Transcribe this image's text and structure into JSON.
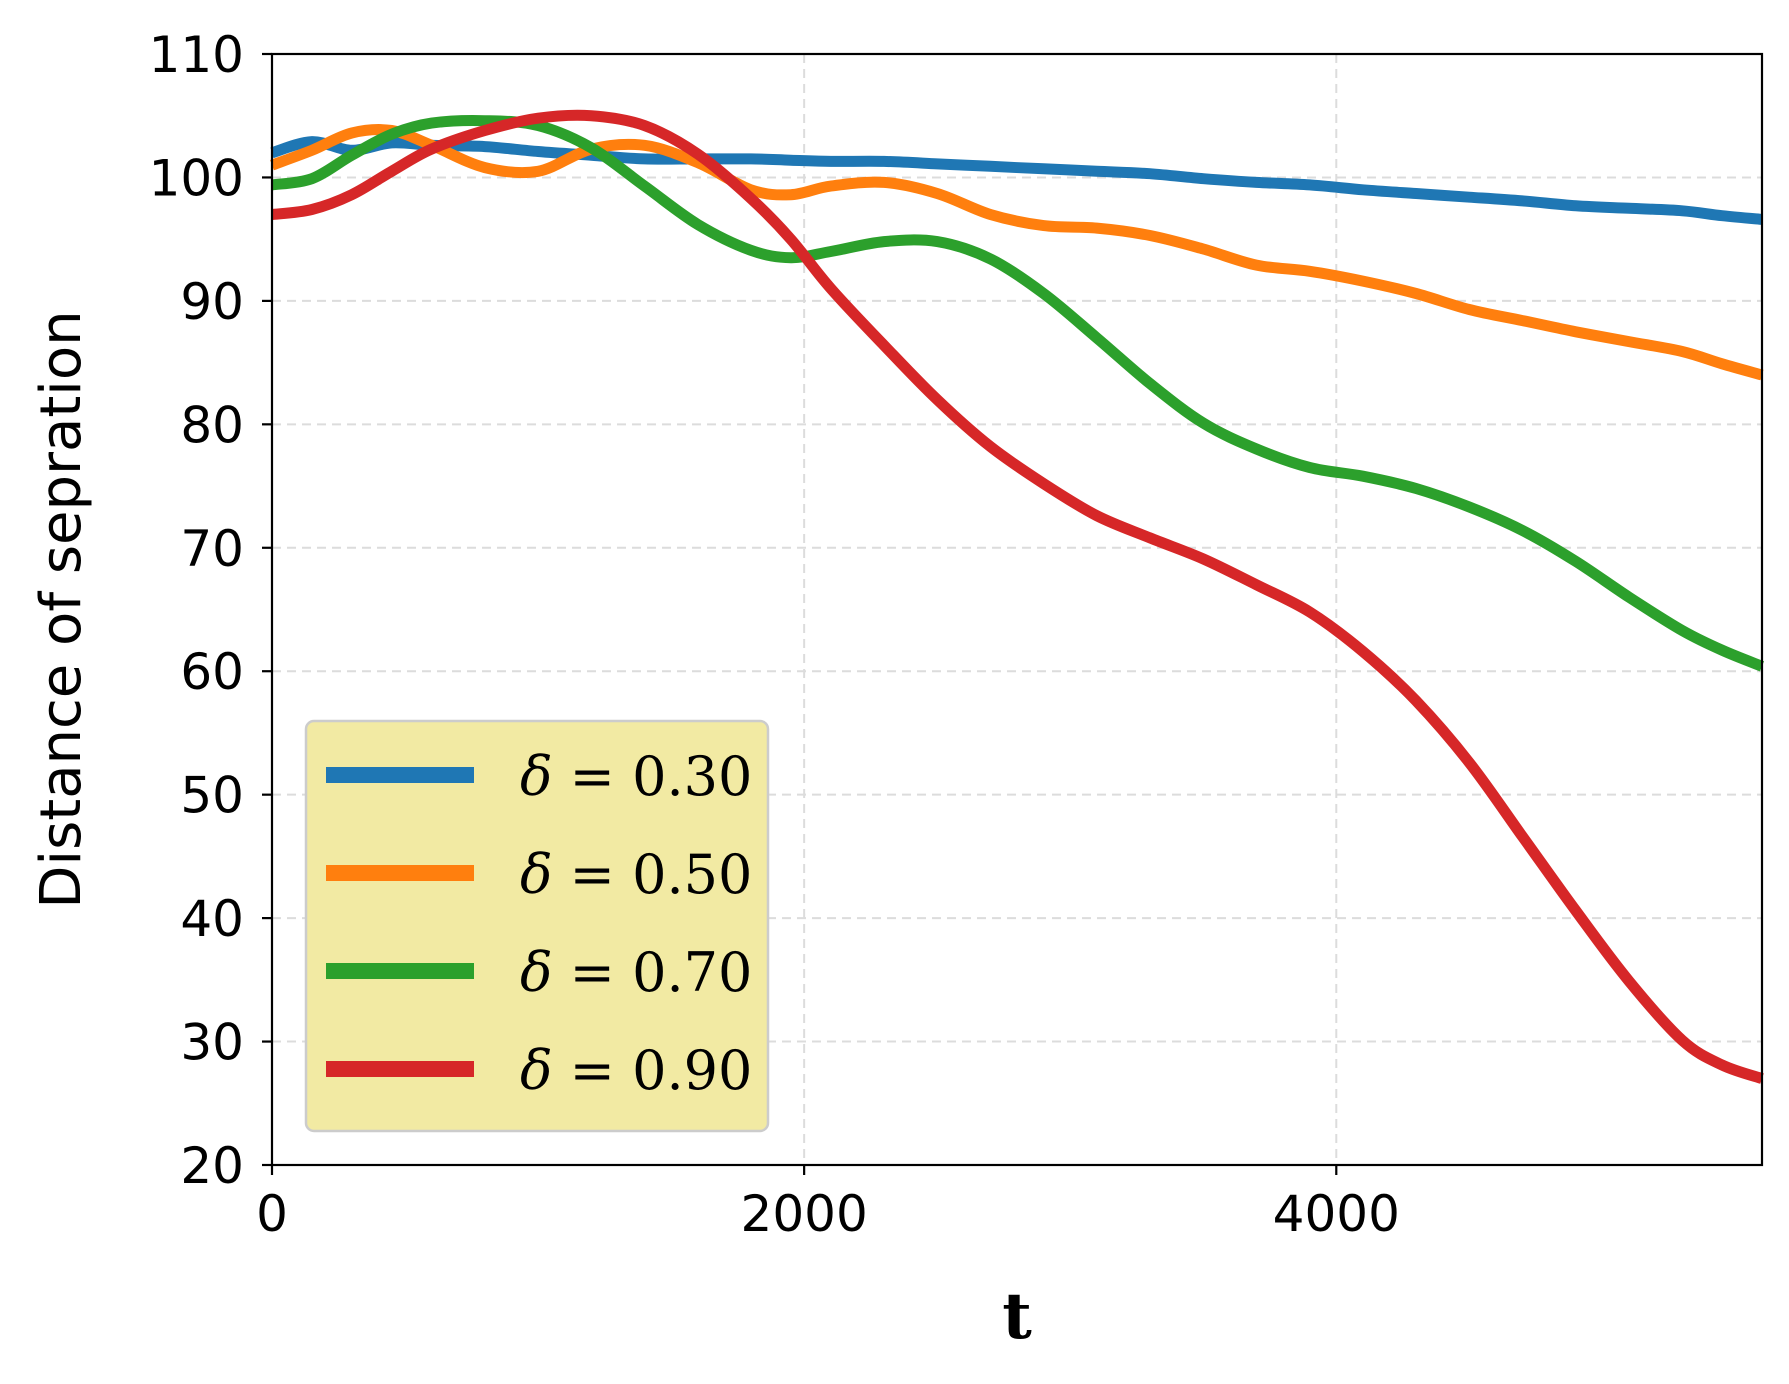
{
  "chart_data": {
    "type": "line",
    "title": "",
    "xlabel": "t",
    "ylabel": "Distance of sepration",
    "xlim": [
      0,
      5600
    ],
    "ylim": [
      20,
      110
    ],
    "xticks": [
      0,
      2000,
      4000
    ],
    "xtick_labels": [
      "0",
      "2000",
      "4000"
    ],
    "yticks": [
      20,
      30,
      40,
      50,
      60,
      70,
      80,
      90,
      100,
      110
    ],
    "ytick_labels": [
      "20",
      "30",
      "40",
      "50",
      "60",
      "70",
      "80",
      "90",
      "100",
      "110"
    ],
    "grid": true,
    "legend_position": "lower-left",
    "legend_background": "#f2eaa3",
    "x": [
      0,
      150,
      300,
      450,
      600,
      800,
      1000,
      1200,
      1400,
      1600,
      1800,
      1950,
      2100,
      2300,
      2500,
      2700,
      2900,
      3100,
      3300,
      3500,
      3700,
      3900,
      4100,
      4300,
      4500,
      4700,
      4900,
      5100,
      5300,
      5450,
      5600
    ],
    "series": [
      {
        "name": "δ=0.30",
        "symbol": "δ",
        "value_text": "0.30",
        "color": "#1f77b4",
        "values": [
          102.0,
          102.9,
          102.2,
          102.8,
          102.6,
          102.5,
          102.1,
          101.8,
          101.5,
          101.5,
          101.5,
          101.4,
          101.3,
          101.3,
          101.1,
          100.9,
          100.7,
          100.5,
          100.3,
          99.9,
          99.6,
          99.4,
          99.0,
          98.7,
          98.4,
          98.1,
          97.7,
          97.5,
          97.3,
          96.9,
          96.6
        ]
      },
      {
        "name": "δ=0.50",
        "symbol": "δ",
        "value_text": "0.50",
        "color": "#ff7f0e",
        "values": [
          101.0,
          102.2,
          103.6,
          103.8,
          102.6,
          100.8,
          100.5,
          102.3,
          102.6,
          101.2,
          99.0,
          98.6,
          99.3,
          99.6,
          98.7,
          97.0,
          96.1,
          95.9,
          95.3,
          94.2,
          92.9,
          92.4,
          91.6,
          90.6,
          89.3,
          88.4,
          87.5,
          86.7,
          85.9,
          84.9,
          84.0
        ]
      },
      {
        "name": "δ=0.70",
        "symbol": "δ",
        "value_text": "0.70",
        "color": "#2ca02c",
        "values": [
          99.4,
          99.9,
          101.8,
          103.5,
          104.4,
          104.6,
          104.2,
          102.4,
          99.3,
          96.2,
          94.1,
          93.5,
          94.0,
          94.8,
          94.8,
          93.4,
          90.6,
          87.0,
          83.3,
          80.1,
          78.0,
          76.5,
          75.8,
          74.8,
          73.3,
          71.4,
          68.9,
          66.0,
          63.3,
          61.7,
          60.4
        ]
      },
      {
        "name": "δ=0.90",
        "symbol": "δ",
        "value_text": "0.90",
        "color": "#d62728",
        "values": [
          97.0,
          97.4,
          98.6,
          100.5,
          102.3,
          103.8,
          104.8,
          105.0,
          104.2,
          101.9,
          98.3,
          95.0,
          91.0,
          86.4,
          82.0,
          78.2,
          75.2,
          72.6,
          70.8,
          69.1,
          67.0,
          64.8,
          61.6,
          57.6,
          52.6,
          46.6,
          40.6,
          34.9,
          30.1,
          28.1,
          27.0
        ]
      }
    ]
  }
}
